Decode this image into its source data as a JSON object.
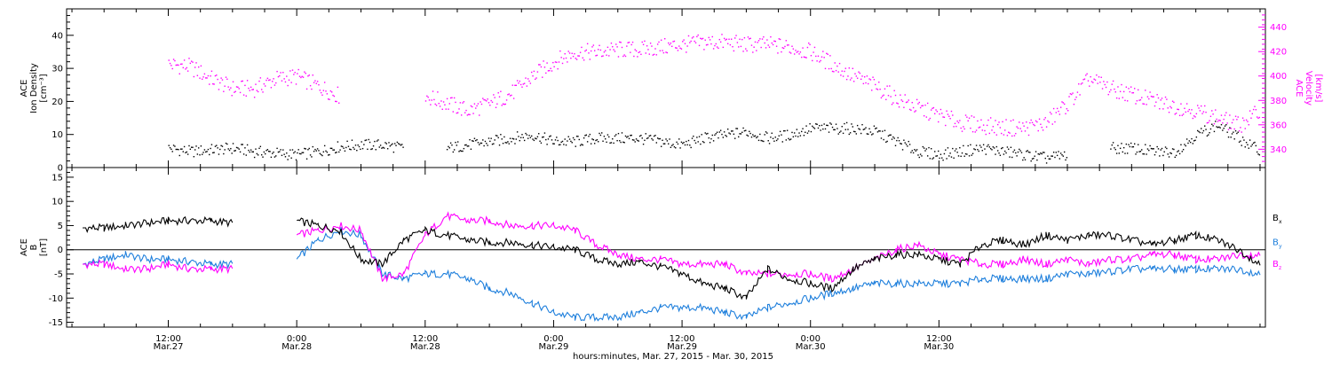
{
  "chart_data": [
    {
      "panel": "top",
      "type": "scatter",
      "ylabel_left": [
        "ACE",
        "Ion Density",
        "[cm⁻³]"
      ],
      "ylabel_right": [
        "ACE",
        "Velocity",
        "[km/s]"
      ],
      "ylim_left": [
        0,
        48
      ],
      "ylim_right": [
        325,
        455
      ],
      "yticks_left": [
        0,
        10,
        20,
        30,
        40
      ],
      "yticks_right": [
        340,
        360,
        380,
        400,
        420,
        440
      ],
      "right_axis_color": "#ff00ff",
      "series": [
        {
          "axis": "left",
          "color": "#000000",
          "x": [
            0,
            2,
            4,
            6,
            8,
            10,
            12,
            14,
            16,
            18,
            20,
            22,
            24,
            26,
            28,
            30,
            32,
            34,
            36,
            38,
            40,
            42,
            44,
            46,
            48,
            50,
            52,
            54,
            56,
            58,
            60,
            62,
            64,
            66,
            68,
            70,
            72,
            74,
            76,
            78,
            80,
            82,
            84,
            86,
            88,
            90,
            92,
            94,
            96,
            98,
            100,
            102
          ],
          "y": [
            6,
            5,
            5.5,
            6,
            5,
            4.5,
            4,
            5,
            6.5,
            7,
            7,
            6,
            null,
            6,
            7,
            8,
            9,
            10,
            8,
            8,
            9,
            9,
            9,
            8,
            7,
            9,
            10,
            11,
            9,
            10,
            12,
            12,
            12,
            11,
            8,
            5,
            4,
            5,
            6,
            5,
            4,
            3,
            4,
            null,
            6,
            6,
            5,
            5,
            10,
            13,
            9,
            5
          ]
        },
        {
          "axis": "right",
          "color": "#ff00ff",
          "x": [
            0,
            2,
            4,
            6,
            8,
            10,
            12,
            14,
            16,
            18,
            20,
            22,
            24,
            26,
            28,
            30,
            32,
            34,
            36,
            38,
            40,
            42,
            44,
            46,
            48,
            50,
            52,
            54,
            56,
            58,
            60,
            62,
            64,
            66,
            68,
            70,
            72,
            74,
            76,
            78,
            80,
            82,
            84,
            86,
            88,
            90,
            92,
            94,
            96,
            98,
            100,
            102
          ],
          "y": [
            410,
            408,
            398,
            390,
            390,
            398,
            400,
            392,
            384,
            null,
            null,
            null,
            384,
            378,
            372,
            378,
            386,
            400,
            412,
            420,
            420,
            422,
            422,
            424,
            426,
            428,
            428,
            426,
            426,
            424,
            420,
            410,
            400,
            392,
            382,
            374,
            368,
            362,
            360,
            358,
            358,
            362,
            378,
            398,
            390,
            385,
            380,
            376,
            372,
            366,
            360,
            372
          ]
        }
      ]
    },
    {
      "panel": "bottom",
      "type": "line",
      "ylabel": [
        "ACE",
        "B",
        "[nT]"
      ],
      "ylim": [
        -16,
        17
      ],
      "yticks": [
        -15,
        -10,
        -5,
        0,
        5,
        10,
        15
      ],
      "xlabel": "hours:minutes, Mar. 27, 2015 - Mar. 30, 2015",
      "xlim_hours": [
        -9.5,
        102.5
      ],
      "xticks": [
        {
          "h": 0,
          "time": "12:00",
          "date": "Mar.27"
        },
        {
          "h": 12,
          "time": "0:00",
          "date": "Mar.28"
        },
        {
          "h": 24,
          "time": "12:00",
          "date": "Mar.28"
        },
        {
          "h": 36,
          "time": "0:00",
          "date": "Mar.29"
        },
        {
          "h": 48,
          "time": "12:00",
          "date": "Mar.29"
        },
        {
          "h": 60,
          "time": "0:00",
          "date": "Mar.30"
        },
        {
          "h": 72,
          "time": "12:00",
          "date": "Mar.30"
        }
      ],
      "series": [
        {
          "name": "Bx",
          "label_main": "B",
          "label_sub": "x",
          "color": "#000000",
          "x": [
            -8,
            -6,
            -4,
            -2,
            0,
            2,
            4,
            6,
            8,
            10,
            12,
            14,
            16,
            18,
            20,
            22,
            24,
            26,
            28,
            30,
            32,
            34,
            36,
            38,
            40,
            42,
            44,
            46,
            48,
            50,
            52,
            54,
            56,
            58,
            60,
            62,
            64,
            66,
            68,
            70,
            72,
            74,
            76,
            78,
            80,
            82,
            84,
            86,
            88,
            90,
            92,
            94,
            96,
            98,
            100,
            102
          ],
          "y": [
            4.5,
            4.5,
            5,
            5.5,
            6,
            6,
            6,
            5.5,
            null,
            null,
            6,
            5,
            4,
            -2,
            -3,
            2,
            4,
            3,
            2,
            1.5,
            1.5,
            1,
            0.5,
            0,
            -2,
            -3,
            -2.5,
            -3.5,
            -5,
            -7,
            -8,
            -10,
            -4,
            -6,
            -7,
            -8,
            -4,
            -2,
            -1,
            -1,
            -2,
            -3,
            1,
            2,
            1,
            3,
            2,
            3,
            3,
            2,
            1,
            2,
            3,
            2,
            0,
            -3
          ]
        },
        {
          "name": "By",
          "label_main": "B",
          "label_sub": "y",
          "color": "#1e7fdc",
          "x": [
            -8,
            -6,
            -4,
            -2,
            0,
            2,
            4,
            6,
            8,
            10,
            12,
            14,
            16,
            18,
            20,
            22,
            24,
            26,
            28,
            30,
            32,
            34,
            36,
            38,
            40,
            42,
            44,
            46,
            48,
            50,
            52,
            54,
            56,
            58,
            60,
            62,
            64,
            66,
            68,
            70,
            72,
            74,
            76,
            78,
            80,
            82,
            84,
            86,
            88,
            90,
            92,
            94,
            96,
            98,
            100,
            102
          ],
          "y": [
            -3,
            -2,
            -1,
            -2,
            -2,
            -2.5,
            -3,
            -3,
            null,
            null,
            -2,
            2,
            4,
            3,
            -5,
            -6,
            -5,
            -5,
            -6,
            -8,
            -9,
            -11,
            -13,
            -14,
            -14,
            -14,
            -13,
            -12,
            -12,
            -12,
            -13,
            -14,
            -12,
            -11,
            -10,
            -9,
            -8,
            -7,
            -7,
            -7,
            -7,
            -7,
            -6,
            -6,
            -6,
            -6,
            -5,
            -5,
            -4.5,
            -4,
            -4,
            -4,
            -4,
            -4,
            -4,
            -5
          ]
        },
        {
          "name": "Bz",
          "label_main": "B",
          "label_sub": "z",
          "color": "#ff00ff",
          "x": [
            -8,
            -6,
            -4,
            -2,
            0,
            2,
            4,
            6,
            8,
            10,
            12,
            14,
            16,
            18,
            20,
            22,
            24,
            26,
            28,
            30,
            32,
            34,
            36,
            38,
            40,
            42,
            44,
            46,
            48,
            50,
            52,
            54,
            56,
            58,
            60,
            62,
            64,
            66,
            68,
            70,
            72,
            74,
            76,
            78,
            80,
            82,
            84,
            86,
            88,
            90,
            92,
            94,
            96,
            98,
            100,
            102
          ],
          "y": [
            -3,
            -3,
            -4,
            -4,
            -3,
            -4,
            -4,
            -4,
            null,
            null,
            3,
            4,
            5,
            4,
            -6,
            -5,
            3,
            7,
            6,
            6,
            5,
            5,
            5,
            4,
            1,
            -1,
            -2,
            -2,
            -3,
            -3,
            -3,
            -5,
            -5,
            -5,
            -5,
            -6,
            -4,
            -2,
            0,
            1,
            -1,
            -2,
            -3,
            -3,
            -2,
            -3,
            -2,
            -3,
            -2,
            -2,
            -1,
            -1,
            -2,
            -2,
            -1,
            -1
          ]
        }
      ]
    }
  ]
}
